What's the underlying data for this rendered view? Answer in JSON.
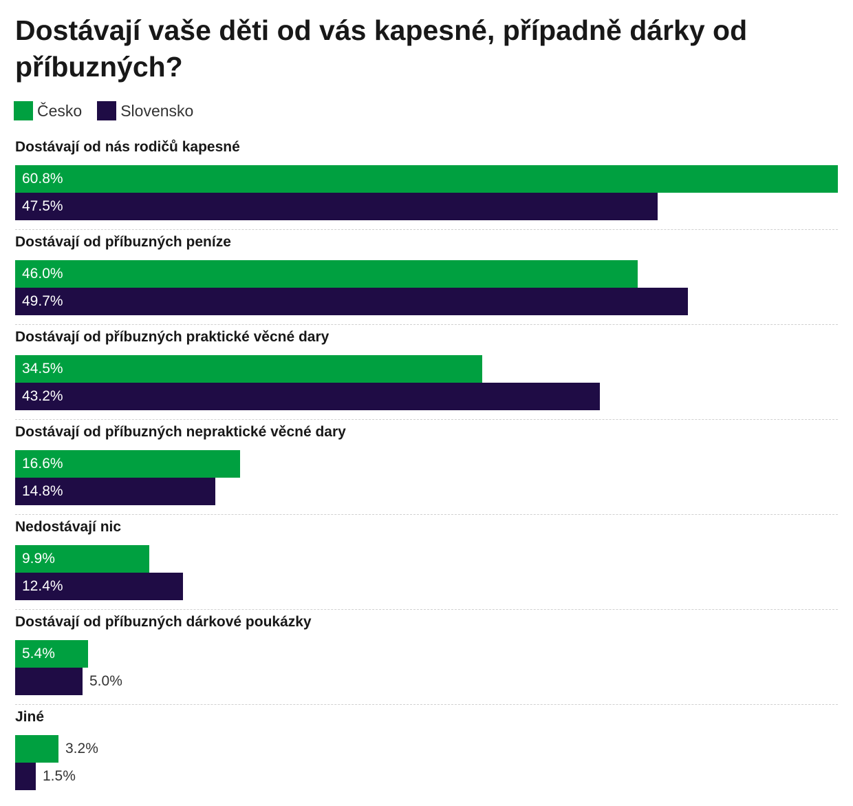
{
  "chart_data": {
    "type": "bar",
    "orientation": "horizontal",
    "title": "Dostávají vaše děti od vás kapesné, případně dárky od příbuzných?",
    "legend_position": "top-left",
    "grid": false,
    "xlim": [
      0,
      60.8
    ],
    "value_format": "percent_one_decimal",
    "categories": [
      "Dostávají od nás rodičů kapesné",
      "Dostávají od příbuzných peníze",
      "Dostávají od příbuzných praktické věcné dary",
      "Dostávají od příbuzných nepraktické věcné dary",
      "Nedostávají nic",
      "Dostávají od příbuzných dárkové poukázky",
      "Jiné"
    ],
    "series": [
      {
        "name": "Česko",
        "color": "#00a040",
        "values": [
          60.8,
          46.0,
          34.5,
          16.6,
          9.9,
          5.4,
          3.2
        ],
        "labels": [
          "60.8%",
          "46.0%",
          "34.5%",
          "16.6%",
          "9.9%",
          "5.4%",
          "3.2%"
        ]
      },
      {
        "name": "Slovensko",
        "color": "#1f0c45",
        "values": [
          47.5,
          49.7,
          43.2,
          14.8,
          12.4,
          5.0,
          1.5
        ],
        "labels": [
          "47.5%",
          "49.7%",
          "43.2%",
          "14.8%",
          "12.4%",
          "5.0%",
          "1.5%"
        ]
      }
    ]
  }
}
